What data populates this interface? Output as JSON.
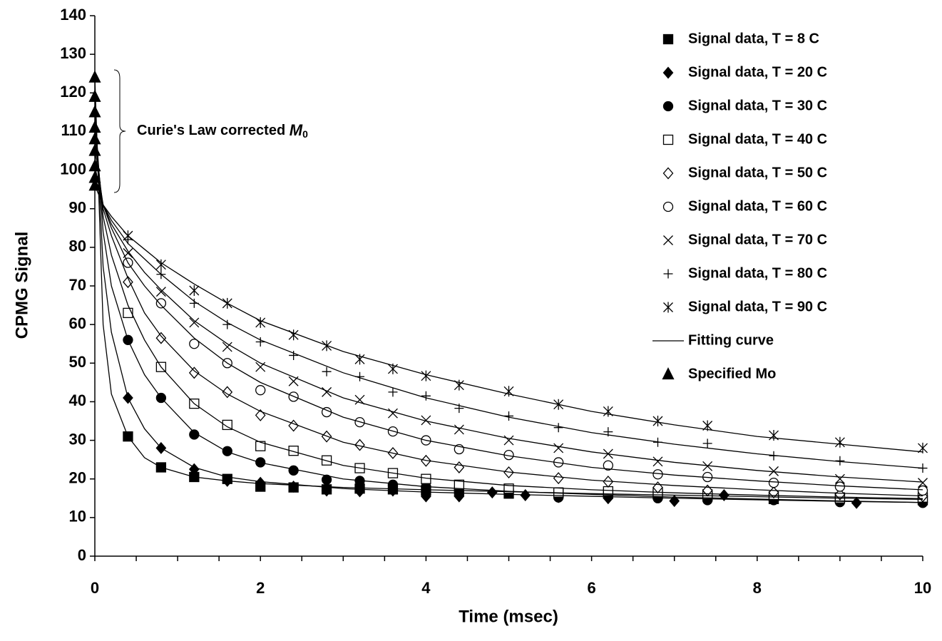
{
  "chart_data": {
    "type": "scatter",
    "xlabel": "Time (msec)",
    "ylabel": "CPMG Signal",
    "xlim": [
      0,
      10
    ],
    "xticks": [
      0,
      2,
      4,
      6,
      8,
      10
    ],
    "xtickmarks": [
      0,
      0.5,
      1,
      1.5,
      2,
      2.5,
      3,
      3.5,
      4,
      4.5,
      5,
      5.5,
      6,
      6.5,
      7,
      7.5,
      8,
      8.5,
      9,
      9.5,
      10
    ],
    "ylim": [
      0,
      140
    ],
    "yticks": [
      0,
      10,
      20,
      30,
      40,
      50,
      60,
      70,
      80,
      90,
      100,
      110,
      120,
      130,
      140
    ],
    "annotation": {
      "text": "Curie's Law corrected",
      "symbol": "M",
      "subscript": "0"
    },
    "series": [
      {
        "name": "Signal data, T = 8 C",
        "color": "#000000",
        "marker": "square",
        "filled": true,
        "x": [
          0.4,
          0.8,
          1.2,
          1.6,
          2.0,
          2.4,
          2.8,
          3.2,
          3.6,
          4.0,
          4.4,
          5.0,
          5.6,
          6.2,
          6.8,
          7.4,
          8.2,
          9.0,
          10.0
        ],
        "values": [
          31,
          23,
          20.5,
          20,
          18,
          17.8,
          17.3,
          17.5,
          17.3,
          17,
          16.8,
          16.2,
          16.3,
          16.2,
          16,
          15.5,
          14.8,
          15.2,
          14.5
        ]
      },
      {
        "name": "Signal data, T = 20 C",
        "color": "#000000",
        "marker": "diamond",
        "filled": true,
        "x": [
          0.4,
          0.8,
          1.2,
          1.6,
          2.0,
          2.4,
          2.8,
          3.2,
          3.6,
          4.0,
          4.4,
          4.8,
          5.2,
          5.6,
          6.2,
          7.0,
          7.6,
          8.2,
          9.2,
          10.0
        ],
        "values": [
          41,
          28,
          22.5,
          19.5,
          19,
          18,
          17,
          16.8,
          17,
          15.5,
          15.5,
          16.5,
          15.8,
          15.3,
          15,
          14.3,
          15.8,
          14.8,
          13.8,
          14
        ]
      },
      {
        "name": "Signal data, T = 30 C",
        "color": "#000000",
        "marker": "circle",
        "filled": true,
        "x": [
          0.4,
          0.8,
          1.2,
          1.6,
          2.0,
          2.4,
          2.8,
          3.2,
          3.6,
          4.0,
          4.4,
          5.0,
          5.6,
          6.2,
          6.8,
          7.4,
          8.2,
          9.0,
          10.0
        ],
        "values": [
          56,
          41,
          31.5,
          27.2,
          24.3,
          22.2,
          19.8,
          19.5,
          18.5,
          18,
          17,
          16.5,
          15.2,
          15.5,
          15,
          14.5,
          14.5,
          14,
          13.8
        ]
      },
      {
        "name": "Signal data, T = 40 C",
        "color": "#000000",
        "marker": "square",
        "filled": false,
        "x": [
          0.4,
          0.8,
          1.2,
          1.6,
          2.0,
          2.4,
          2.8,
          3.2,
          3.6,
          4.0,
          4.4,
          5.0,
          5.6,
          6.2,
          6.8,
          7.4,
          8.2,
          9.0,
          10.0
        ],
        "values": [
          63,
          49,
          39.5,
          34,
          28.5,
          27.3,
          24.8,
          22.8,
          21.5,
          20,
          18.5,
          17.5,
          16.5,
          16.8,
          16.5,
          16,
          15.5,
          15,
          15.2
        ]
      },
      {
        "name": "Signal data, T = 50 C",
        "color": "#000000",
        "marker": "diamond",
        "filled": false,
        "x": [
          0.4,
          0.8,
          1.2,
          1.6,
          2.0,
          2.4,
          2.8,
          3.2,
          3.6,
          4.0,
          4.4,
          5.0,
          5.6,
          6.2,
          6.8,
          7.4,
          8.2,
          9.0,
          10.0
        ],
        "values": [
          71,
          56.5,
          47.5,
          42.5,
          36.5,
          33.8,
          31,
          28.8,
          26.7,
          24.7,
          23,
          21.7,
          20.2,
          19.3,
          17.8,
          17,
          16.5,
          16,
          15.5
        ]
      },
      {
        "name": "Signal data, T = 60 C",
        "color": "#000000",
        "marker": "circle",
        "filled": false,
        "x": [
          0.4,
          0.8,
          1.2,
          1.6,
          2.0,
          2.4,
          2.8,
          3.2,
          3.6,
          4.0,
          4.4,
          5.0,
          5.6,
          6.2,
          6.8,
          7.4,
          8.2,
          9.0,
          10.0
        ],
        "values": [
          76,
          65.5,
          55,
          50,
          43,
          41.3,
          37.3,
          34.7,
          32.3,
          30,
          27.7,
          26.2,
          24.3,
          23.5,
          21.2,
          20.5,
          19,
          18,
          17
        ]
      },
      {
        "name": "Signal data, T = 70 C",
        "color": "#000000",
        "marker": "x",
        "filled": false,
        "x": [
          0.4,
          0.8,
          1.2,
          1.6,
          2.0,
          2.4,
          2.8,
          3.2,
          3.6,
          4.0,
          4.4,
          5.0,
          5.6,
          6.2,
          6.8,
          7.4,
          8.2,
          9.0,
          10.0
        ],
        "values": [
          78.5,
          68.5,
          60.5,
          54.2,
          49,
          45.3,
          42.5,
          40.5,
          37,
          35.2,
          32.8,
          30,
          28,
          26.5,
          24.5,
          23.3,
          22,
          20,
          19
        ]
      },
      {
        "name": "Signal data, T = 80 C",
        "color": "#000000",
        "marker": "plus",
        "filled": false,
        "x": [
          0.4,
          0.8,
          1.2,
          1.6,
          2.0,
          2.4,
          2.8,
          3.2,
          3.6,
          4.0,
          4.4,
          5.0,
          5.6,
          6.2,
          6.8,
          7.4,
          8.2,
          9.0,
          10.0
        ],
        "values": [
          82,
          73,
          65.5,
          60,
          55.5,
          52,
          47.8,
          46.5,
          42.5,
          41.5,
          38.3,
          36.3,
          33.3,
          32.2,
          29.5,
          29.2,
          26,
          24.7,
          22.8
        ]
      },
      {
        "name": "Signal data, T = 90 C",
        "color": "#000000",
        "marker": "star",
        "filled": false,
        "x": [
          0.4,
          0.8,
          1.2,
          1.6,
          2.0,
          2.4,
          2.8,
          3.2,
          3.6,
          4.0,
          4.4,
          5.0,
          5.6,
          6.2,
          6.8,
          7.4,
          8.2,
          9.0,
          10.0
        ],
        "values": [
          83,
          75.5,
          68.8,
          65.5,
          60.5,
          57.3,
          54.5,
          51,
          48.5,
          46.7,
          44.3,
          42.7,
          39.3,
          37.5,
          35,
          33.8,
          31.3,
          29.5,
          28
        ]
      },
      {
        "name": "Fitting curve",
        "color": "#000000",
        "marker": "line",
        "filled": false,
        "x": [
          0,
          0.1,
          0.2,
          0.4,
          0.6,
          0.8,
          1.2,
          1.6,
          2,
          3,
          4,
          5,
          6,
          7,
          8,
          9,
          10
        ],
        "curves": [
          [
            124,
            60,
            42,
            31,
            25.5,
            23,
            20.5,
            19.5,
            18.8,
            17.8,
            17.2,
            16.7,
            16.2,
            15.8,
            15.4,
            15,
            14.7
          ],
          [
            119,
            75,
            58,
            41,
            33,
            28,
            23,
            20.5,
            19.3,
            17.5,
            16.6,
            16,
            15.5,
            15,
            14.6,
            14.2,
            13.9
          ],
          [
            115,
            84,
            70,
            56,
            47,
            41,
            32,
            27,
            24.2,
            20,
            18,
            16.8,
            16,
            15.3,
            14.8,
            14.3,
            13.9
          ],
          [
            111,
            88,
            78,
            65,
            56,
            49,
            39.5,
            33.5,
            29.5,
            23.5,
            20.2,
            18.3,
            17.2,
            16.4,
            15.8,
            15.3,
            14.9
          ],
          [
            108,
            90,
            83,
            72,
            63,
            57,
            48,
            42,
            37.5,
            29.5,
            24.8,
            21.8,
            19.7,
            18.3,
            17.2,
            16.3,
            15.6
          ],
          [
            105,
            91,
            85,
            76,
            70,
            65,
            56.5,
            50,
            45,
            36,
            30,
            26,
            23,
            21,
            19.5,
            18.2,
            17.2
          ],
          [
            101,
            91,
            86,
            79,
            73.5,
            69,
            61,
            55,
            50,
            41,
            35,
            30.5,
            27,
            24.3,
            22.2,
            20.5,
            19.2
          ],
          [
            98,
            91,
            87,
            81,
            77,
            73,
            66,
            60.5,
            56,
            47.5,
            41,
            36,
            32,
            29,
            26.5,
            24.5,
            22.8
          ],
          [
            96,
            91,
            88,
            83,
            79.5,
            76,
            70.5,
            65.5,
            61,
            53,
            47,
            42,
            37.5,
            34,
            31,
            29,
            27
          ]
        ]
      },
      {
        "name": "Specified Mo",
        "color": "#000000",
        "marker": "triangle",
        "filled": true,
        "x": [
          0,
          0,
          0,
          0,
          0,
          0,
          0,
          0,
          0
        ],
        "values": [
          124,
          119,
          115,
          111,
          108,
          105,
          101,
          98,
          96
        ]
      }
    ]
  }
}
